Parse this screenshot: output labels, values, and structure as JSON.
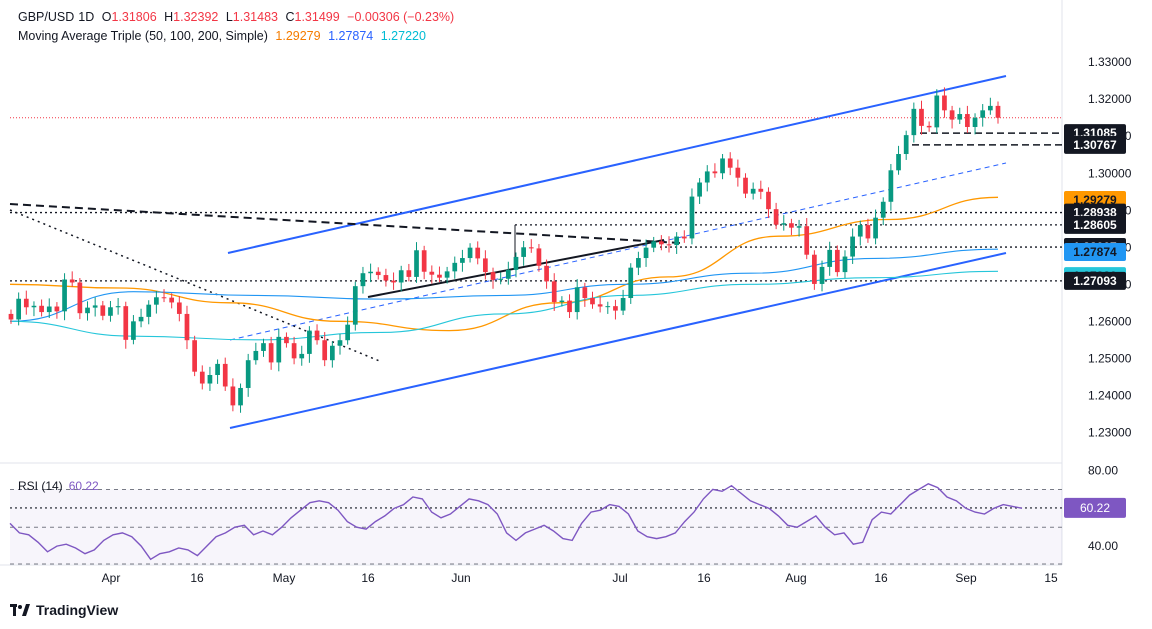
{
  "header": {
    "symbol": "GBP/USD",
    "interval": "1D",
    "open_label": "O",
    "open": "1.31806",
    "high_label": "H",
    "high": "1.32392",
    "low_label": "L",
    "low": "1.31483",
    "close_label": "C",
    "close": "1.31499",
    "change": "−0.00306 (−0.23%)",
    "ma_title": "Moving Average Triple (50, 100, 200, Simple)",
    "ma50": "1.29279",
    "ma100": "1.27874",
    "ma200": "1.27220"
  },
  "rsi": {
    "title": "RSI (14)",
    "value": "60.22",
    "levels": [
      "80.00",
      "40.00"
    ]
  },
  "branding": {
    "name": "TradingView"
  },
  "colors": {
    "bull": "#089981",
    "bear": "#f23645",
    "ma50": "#ff9800",
    "ma100": "#2196f3",
    "ma200": "#26c6da",
    "channel": "#2962ff",
    "rsi": "#7e57c2",
    "axis_text": "#131722"
  },
  "chart_data": {
    "type": "candlestick",
    "y_range": [
      1.222,
      1.336
    ],
    "y_ticks": [
      "1.33000",
      "1.32000",
      "1.31000",
      "1.30000",
      "1.29000",
      "1.28000",
      "1.27000",
      "1.26000",
      "1.25000",
      "1.24000",
      "1.23000"
    ],
    "x_labels": [
      "Apr",
      "16",
      "May",
      "16",
      "Jun",
      "Jul",
      "16",
      "Aug",
      "16",
      "Sep",
      "15"
    ],
    "price_labels": [
      {
        "text": "1.31085",
        "value": 1.31085,
        "style": "dark"
      },
      {
        "text": "1.30767",
        "value": 1.30767,
        "style": "dark"
      },
      {
        "text": "1.29279",
        "value": 1.29279,
        "style": "ma50"
      },
      {
        "text": "1.28938",
        "value": 1.28938,
        "style": "dark"
      },
      {
        "text": "1.28605",
        "value": 1.28605,
        "style": "dark"
      },
      {
        "text": "1.28007",
        "value": 1.28007,
        "style": "dark"
      },
      {
        "text": "1.27874",
        "value": 1.27874,
        "style": "ma100"
      },
      {
        "text": "1.27220",
        "value": 1.2722,
        "style": "ma200"
      },
      {
        "text": "1.27093",
        "value": 1.27093,
        "style": "dark"
      }
    ],
    "current_price": 1.31499,
    "closes": [
      1.2605,
      1.2661,
      1.2638,
      1.2642,
      1.2625,
      1.264,
      1.2627,
      1.2713,
      1.2705,
      1.2622,
      1.2637,
      1.2643,
      1.2615,
      1.2638,
      1.2641,
      1.255,
      1.26,
      1.2612,
      1.2645,
      1.2665,
      1.2664,
      1.2651,
      1.262,
      1.2549,
      1.2464,
      1.2432,
      1.2455,
      1.2485,
      1.2424,
      1.2373,
      1.242,
      1.2495,
      1.252,
      1.2541,
      1.2489,
      1.2558,
      1.2541,
      1.25,
      1.2512,
      1.2575,
      1.2549,
      1.2495,
      1.2534,
      1.2549,
      1.2591,
      1.2695,
      1.273,
      1.2734,
      1.2725,
      1.271,
      1.2705,
      1.2738,
      1.272,
      1.2792,
      1.2734,
      1.2726,
      1.2718,
      1.2735,
      1.2758,
      1.2771,
      1.2799,
      1.277,
      1.2733,
      1.2712,
      1.2715,
      1.2739,
      1.2774,
      1.28,
      1.2797,
      1.275,
      1.2708,
      1.2652,
      1.2656,
      1.2625,
      1.2692,
      1.2663,
      1.2646,
      1.264,
      1.2641,
      1.2629,
      1.2663,
      1.2745,
      1.2771,
      1.2799,
      1.2816,
      1.2808,
      1.2806,
      1.2829,
      1.2824,
      1.2937,
      1.2975,
      1.3005,
      1.3,
      1.304,
      1.3015,
      1.2988,
      1.2945,
      1.2958,
      1.295,
      1.2903,
      1.2861,
      1.2865,
      1.2853,
      1.2857,
      1.278,
      1.2701,
      1.2747,
      1.2793,
      1.2733,
      1.2775,
      1.2829,
      1.286,
      1.2824,
      1.288,
      1.2923,
      1.3008,
      1.3052,
      1.3103,
      1.3174,
      1.3128,
      1.3124,
      1.321,
      1.317,
      1.3145,
      1.316,
      1.3125,
      1.315,
      1.317,
      1.3182,
      1.315
    ],
    "opens_start": 1.262,
    "ma50_anchor_values": [
      1.27,
      1.269,
      1.265,
      1.26,
      1.2575,
      1.265,
      1.272,
      1.283,
      1.2875,
      1.2935
    ],
    "ma100_anchor_values": [
      1.26,
      1.268,
      1.267,
      1.266,
      1.267,
      1.27,
      1.273,
      1.277,
      1.2795
    ],
    "ma200_anchor_values": [
      1.26,
      1.256,
      1.255,
      1.257,
      1.262,
      1.267,
      1.27,
      1.2718,
      1.2735
    ],
    "rsi_values": [
      52,
      47,
      46,
      42,
      37,
      40,
      41,
      39,
      36,
      38,
      43,
      46,
      47,
      45,
      40,
      33,
      36,
      37,
      39,
      38,
      35,
      40,
      45,
      47,
      50,
      51,
      46,
      48,
      46,
      50,
      55,
      59,
      63,
      64,
      63,
      59,
      53,
      50,
      49,
      53,
      56,
      60,
      62,
      66,
      65,
      58,
      55,
      57,
      61,
      65,
      64,
      62,
      57,
      47,
      43,
      47,
      49,
      51,
      48,
      44,
      43,
      52,
      58,
      59,
      62,
      61,
      57,
      48,
      45,
      44,
      45,
      47,
      53,
      58,
      65,
      70,
      69,
      72,
      68,
      64,
      62,
      60,
      56,
      51,
      50,
      53,
      56,
      50,
      46,
      47,
      41,
      42,
      54,
      58,
      57,
      62,
      67,
      70,
      73,
      71,
      66,
      64,
      60,
      58,
      57,
      60,
      62,
      61,
      60
    ],
    "rsi_range": [
      30,
      84
    ],
    "rsi_ticks": [
      "80.00",
      "40.00"
    ],
    "rsi_last": "60.22"
  }
}
